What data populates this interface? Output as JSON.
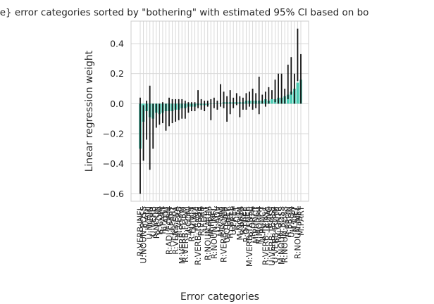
{
  "chart_data": {
    "type": "bar",
    "title": "ıe} error categories sorted by \"bothering\" with estimated 95% CI based on bo",
    "xlabel": "Error categories",
    "ylabel": "Linear regression weight",
    "ylim": [
      -0.65,
      0.55
    ],
    "yticks": [
      "0.4",
      "0.2",
      "0.0",
      "−0.2",
      "−0.4",
      "−0.6"
    ],
    "ytick_values": [
      0.4,
      0.2,
      0.0,
      -0.2,
      -0.4,
      -0.6
    ],
    "grid": true,
    "bar_color": "#48c9b0",
    "error_color": "#111111",
    "grid_color": "#d9d9d9",
    "categories": [
      "R:VERB:INFL",
      "U:NOUN:POSS",
      "R:ADJ",
      "U:NOUN",
      "U:VERB",
      "R:NOUN",
      "R:CONJ",
      "R:PART",
      "R:ADV",
      "R:ADJ:FORM",
      "U:PART",
      "R:VERB:SVA",
      "M:VERB",
      "M:VERB:FORM",
      "R:VERB:FORM",
      "U:CONJ",
      "R:PUNCT",
      "M:ADJ",
      "R:VERB:TENSE",
      "R:VERB",
      "U:DET",
      "R:NOUN:NUM",
      "M:PREP",
      "R:NOUN:INFL",
      "U:ADV",
      "M:CONJ",
      "R:VERB:FORM",
      "U:OTHER",
      "R:SPELL",
      "U:PREP",
      "R:DET",
      "M:NOUN",
      "R:PREP",
      "R:OTHER",
      "M:VERB:TENSE",
      "R:ORTH",
      "M:PUNCT",
      "R:MORPH",
      "U:PUNCT",
      "R:VERB:TENSE",
      "R:WO",
      "U:VERB:TENSE",
      "U:VERB:FORM",
      "R:CONTR",
      "M:NOUN:POSS",
      "R:NOUN:POSS",
      "R:PRON",
      "U:PRON",
      "M:DET",
      "R:NOUN:INFL",
      "M:PART"
    ],
    "values": [
      -0.3,
      -0.12,
      -0.05,
      -0.09,
      -0.1,
      -0.06,
      -0.07,
      -0.06,
      -0.05,
      -0.05,
      -0.05,
      -0.04,
      -0.04,
      -0.03,
      -0.03,
      -0.02,
      -0.02,
      -0.02,
      -0.01,
      -0.01,
      -0.01,
      -0.01,
      0.0,
      0.0,
      0.0,
      0.0,
      0.01,
      0.01,
      0.01,
      0.01,
      0.01,
      0.01,
      0.01,
      0.02,
      0.02,
      0.02,
      0.02,
      0.02,
      0.02,
      0.03,
      0.02,
      0.03,
      0.03,
      0.04,
      0.04,
      0.05,
      0.06,
      0.08,
      0.1,
      0.14,
      0.16
    ],
    "ci_low": [
      -0.6,
      -0.38,
      -0.24,
      -0.44,
      -0.3,
      -0.16,
      -0.14,
      -0.13,
      -0.18,
      -0.15,
      -0.13,
      -0.12,
      -0.11,
      -0.1,
      -0.1,
      -0.06,
      -0.05,
      -0.05,
      -0.03,
      -0.04,
      -0.05,
      -0.02,
      -0.11,
      -0.03,
      -0.04,
      -0.02,
      -0.03,
      -0.12,
      -0.07,
      -0.03,
      -0.01,
      -0.09,
      -0.04,
      -0.04,
      -0.02,
      -0.04,
      -0.03,
      -0.07,
      0.0,
      -0.02,
      0.0,
      0.03,
      0.01,
      0.0,
      0.0,
      0.0,
      0.03,
      0.06,
      0.0,
      0.15,
      0.0
    ],
    "ci_high": [
      0.04,
      -0.01,
      0.02,
      0.12,
      0.0,
      0.0,
      0.0,
      0.01,
      0.0,
      0.04,
      0.03,
      0.03,
      0.03,
      0.03,
      0.02,
      0.01,
      0.01,
      0.01,
      0.09,
      0.03,
      0.02,
      0.02,
      0.03,
      0.04,
      0.02,
      0.13,
      0.08,
      0.05,
      0.09,
      0.04,
      0.07,
      0.05,
      0.04,
      0.07,
      0.08,
      0.1,
      0.07,
      0.18,
      0.06,
      0.08,
      0.11,
      0.09,
      0.16,
      0.2,
      0.2,
      0.1,
      0.26,
      0.31,
      0.2,
      0.5,
      0.33
    ]
  }
}
